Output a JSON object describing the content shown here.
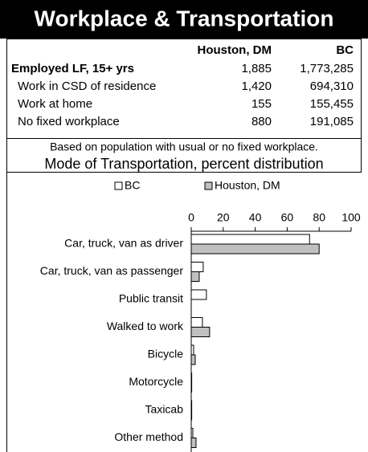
{
  "header": {
    "title": "Workplace & Transportation"
  },
  "table": {
    "columns": [
      "Houston, DM",
      "BC"
    ],
    "rows": [
      [
        "Employed LF, 15+ yrs",
        "1,885",
        "1,773,285"
      ],
      [
        "Work in CSD of residence",
        "1,420",
        "694,310"
      ],
      [
        "Work at home",
        "155",
        "155,455"
      ],
      [
        "No fixed workplace",
        "880",
        "191,085"
      ]
    ]
  },
  "note": "Based on population with usual or no fixed workplace.",
  "chart_data": {
    "type": "bar",
    "orientation": "horizontal",
    "title": "Mode of Transportation, percent distribution",
    "categories": [
      "Car, truck, van as driver",
      "Car, truck, van as passenger",
      "Public transit",
      "Walked to work",
      "Bicycle",
      "Motorcycle",
      "Taxicab",
      "Other method"
    ],
    "series": [
      {
        "name": "BC",
        "color": "#ffffff",
        "values": [
          74,
          7.5,
          9.5,
          7,
          1.5,
          0.3,
          0.3,
          1
        ]
      },
      {
        "name": "Houston, DM",
        "color": "#c0c0c0",
        "values": [
          80,
          5,
          0,
          11.5,
          2.5,
          0.3,
          0.3,
          3
        ]
      }
    ],
    "xlim": [
      0,
      100
    ],
    "xticks": [
      0,
      20,
      40,
      60,
      80,
      100
    ]
  }
}
